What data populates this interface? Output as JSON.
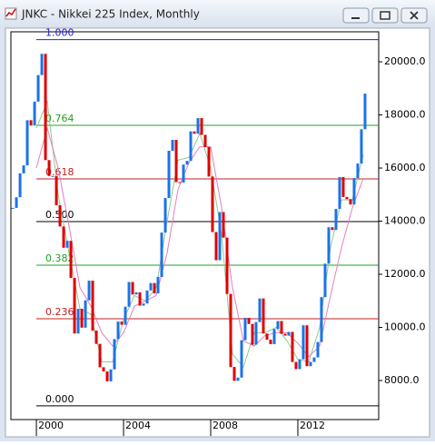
{
  "chart_data": {
    "type": "candlestick",
    "title": "JNKC - Nikkei 225 Index, Monthly",
    "xlim": [
      1998.83,
      2015.71
    ],
    "xticks": [
      2000,
      2004,
      2008,
      2012
    ],
    "ylim": [
      6530,
      21130
    ],
    "yticks": [
      {
        "value": 8000,
        "label": "8000.0"
      },
      {
        "value": 10000,
        "label": "10000.0"
      },
      {
        "value": 12000,
        "label": "12000.0"
      },
      {
        "value": 14000,
        "label": "14000.0"
      },
      {
        "value": 16000,
        "label": "16000.0"
      },
      {
        "value": 18000,
        "label": "18000.0"
      },
      {
        "value": 20000,
        "label": "20000.0"
      }
    ],
    "up_color": "#1a73e8",
    "down_color": "#e00000",
    "x": [
      1998.917,
      1999.083,
      1999.25,
      1999.417,
      1999.583,
      1999.75,
      1999.917,
      2000.083,
      2000.25,
      2000.417,
      2000.583,
      2000.75,
      2000.917,
      2001.083,
      2001.25,
      2001.417,
      2001.583,
      2001.75,
      2001.917,
      2002.083,
      2002.25,
      2002.417,
      2002.583,
      2002.75,
      2002.917,
      2003.083,
      2003.25,
      2003.417,
      2003.583,
      2003.75,
      2003.917,
      2004.083,
      2004.25,
      2004.417,
      2004.583,
      2004.75,
      2004.917,
      2005.083,
      2005.25,
      2005.417,
      2005.583,
      2005.75,
      2005.917,
      2006.083,
      2006.25,
      2006.417,
      2006.583,
      2006.75,
      2006.917,
      2007.083,
      2007.25,
      2007.417,
      2007.583,
      2007.75,
      2007.917,
      2008.083,
      2008.25,
      2008.417,
      2008.583,
      2008.75,
      2008.917,
      2009.083,
      2009.25,
      2009.417,
      2009.583,
      2009.75,
      2009.917,
      2010.083,
      2010.25,
      2010.417,
      2010.583,
      2010.75,
      2010.917,
      2011.083,
      2011.25,
      2011.417,
      2011.583,
      2011.75,
      2011.917,
      2012.083,
      2012.25,
      2012.417,
      2012.583,
      2012.75,
      2012.917,
      2013.083,
      2013.25,
      2013.417,
      2013.583,
      2013.75,
      2013.917,
      2014.083,
      2014.25,
      2014.417,
      2014.583,
      2014.75,
      2014.917,
      2015.083
    ],
    "values": [
      14500,
      14900,
      15800,
      16100,
      17800,
      17600,
      18500,
      19500,
      20300,
      16300,
      15700,
      15700,
      14600,
      13800,
      12999,
      13260,
      11860,
      9770,
      10700,
      9990,
      11020,
      11760,
      9880,
      9380,
      8500,
      8340,
      7970,
      8420,
      9560,
      10220,
      10100,
      10780,
      11710,
      11240,
      11320,
      10820,
      10900,
      11390,
      11670,
      11280,
      11900,
      13570,
      14870,
      16650,
      17060,
      15470,
      15450,
      16130,
      16270,
      17380,
      17290,
      17880,
      17250,
      16790,
      15680,
      13590,
      12530,
      14340,
      13380,
      11260,
      8510,
      7990,
      8110,
      9520,
      10360,
      10130,
      9350,
      10200,
      11090,
      9770,
      9540,
      9370,
      9940,
      10240,
      9760,
      9690,
      9830,
      8700,
      8430,
      8800,
      10080,
      8540,
      8700,
      8870,
      9450,
      11140,
      12400,
      13770,
      13670,
      14460,
      15660,
      14910,
      14830,
      14630,
      15620,
      16170,
      17460,
      18800
    ],
    "overlays": [
      {
        "color": "#8fc98f",
        "x": [
          2000,
          2000.5,
          2001,
          2001.5,
          2002,
          2002.5,
          2003,
          2003.5,
          2004,
          2004.5,
          2005,
          2005.5,
          2006,
          2006.5,
          2007,
          2007.5,
          2008,
          2008.5,
          2009,
          2009.5,
          2010,
          2010.5,
          2011,
          2011.5,
          2012,
          2012.5,
          2013,
          2013.5,
          2014,
          2014.5,
          2015
        ],
        "values": [
          17500,
          18500,
          15000,
          12800,
          10700,
          10500,
          8700,
          8700,
          10300,
          11200,
          11000,
          11500,
          14000,
          16300,
          16400,
          17300,
          16000,
          13500,
          9000,
          8500,
          9800,
          9800,
          10000,
          9500,
          8800,
          8700,
          10000,
          13000,
          14800,
          14800,
          16500
        ]
      },
      {
        "color": "#e080c0",
        "x": [
          2000,
          2000.5,
          2001,
          2001.5,
          2002,
          2002.5,
          2003,
          2003.5,
          2004,
          2004.5,
          2005,
          2005.5,
          2006,
          2006.5,
          2007,
          2007.5,
          2008,
          2008.5,
          2009,
          2009.5,
          2010,
          2010.5,
          2011,
          2011.5,
          2012,
          2012.5,
          2013,
          2013.5,
          2014,
          2014.5,
          2015
        ],
        "values": [
          16000,
          17500,
          16000,
          13800,
          11500,
          10800,
          9800,
          9300,
          9800,
          10800,
          11000,
          11200,
          12800,
          15200,
          16200,
          16800,
          16800,
          14500,
          11500,
          9500,
          9300,
          9700,
          9800,
          9800,
          9400,
          8900,
          9300,
          11200,
          13000,
          14500,
          15600
        ]
      }
    ],
    "levels": [
      {
        "value": 20833,
        "label": "1.000",
        "color": "#2020d0"
      },
      {
        "value": 17607,
        "label": "0.764",
        "color": "#20a020"
      },
      {
        "value": 15590,
        "label": "0.618",
        "color": "#c02020"
      },
      {
        "value": 13983,
        "label": "0.500",
        "color": "#000000"
      },
      {
        "value": 12342,
        "label": "0.382",
        "color": "#20a020"
      },
      {
        "value": 10325,
        "label": "0.236",
        "color": "#c02020"
      },
      {
        "value": 7046,
        "label": "0.000",
        "color": "#000000"
      }
    ]
  }
}
